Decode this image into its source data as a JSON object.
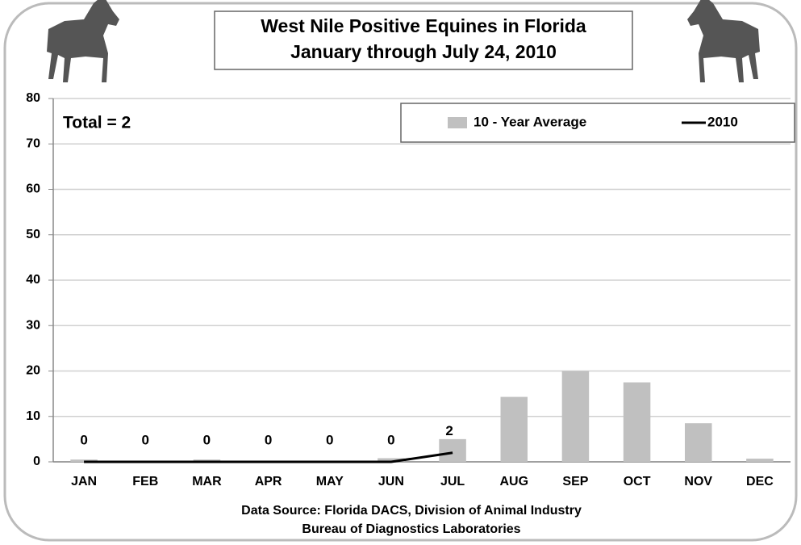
{
  "chart_data": {
    "type": "bar_line",
    "title": "West Nile Positive Equines in Florida",
    "subtitle": "January through July 24, 2010",
    "annotation": "Total = 2",
    "source": [
      "Data Source: Florida DACS, Division of Animal Industry",
      "Bureau of Diagnostics Laboratories"
    ],
    "categories": [
      "JAN",
      "FEB",
      "MAR",
      "APR",
      "MAY",
      "JUN",
      "JUL",
      "AUG",
      "SEP",
      "OCT",
      "NOV",
      "DEC"
    ],
    "series": [
      {
        "name": "10 - Year Average",
        "type": "bar",
        "color": "#c0c0c0",
        "values": [
          0.5,
          0,
          0.5,
          0.2,
          0.2,
          0.8,
          5,
          14.3,
          20,
          17.5,
          8.5,
          0.7
        ]
      },
      {
        "name": "2010",
        "type": "line",
        "color": "#000000",
        "values": [
          0,
          0,
          0,
          0,
          0,
          0,
          2,
          null,
          null,
          null,
          null,
          null
        ]
      }
    ],
    "ylim": [
      0,
      80
    ],
    "yticks": [
      0,
      10,
      20,
      30,
      40,
      50,
      60,
      70,
      80
    ],
    "grid": true,
    "legend": "top-right"
  }
}
